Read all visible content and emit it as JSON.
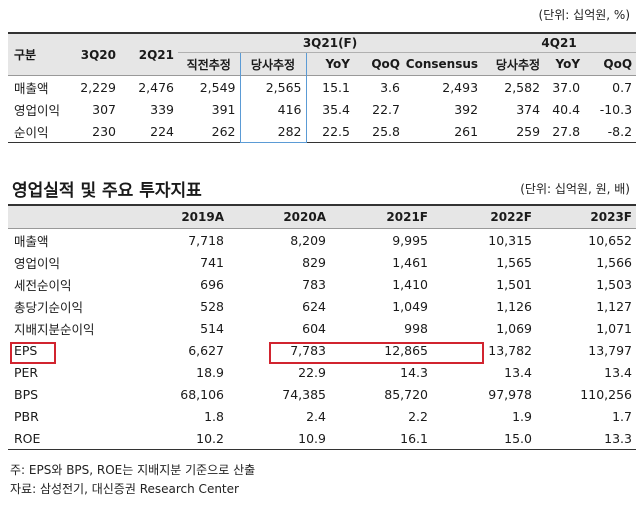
{
  "top": {
    "unit": "(단위: 십억원, %)",
    "header": {
      "gubun": "구분",
      "group_3q21": "3Q21(F)",
      "group_4q21": "4Q21",
      "cols": [
        "3Q20",
        "2Q21",
        "직전추정",
        "당사추정",
        "YoY",
        "QoQ",
        "Consensus",
        "당사추정",
        "YoY",
        "QoQ"
      ]
    },
    "rows": [
      {
        "label": "매출액",
        "values": [
          "2,229",
          "2,476",
          "2,549",
          "2,565",
          "15.1",
          "3.6",
          "2,493",
          "2,582",
          "37.0",
          "0.7"
        ]
      },
      {
        "label": "영업이익",
        "values": [
          "307",
          "339",
          "391",
          "416",
          "35.4",
          "22.7",
          "392",
          "374",
          "40.4",
          "-10.3"
        ]
      },
      {
        "label": "순이익",
        "values": [
          "230",
          "224",
          "262",
          "282",
          "22.5",
          "25.8",
          "261",
          "259",
          "27.8",
          "-8.2"
        ]
      }
    ]
  },
  "bottom": {
    "title": "영업실적 및 주요 투자지표",
    "unit": "(단위: 십억원, 원, 배)",
    "years": [
      "2019A",
      "2020A",
      "2021F",
      "2022F",
      "2023F"
    ],
    "rows": [
      {
        "label": "매출액",
        "values": [
          "7,718",
          "8,209",
          "9,995",
          "10,315",
          "10,652"
        ]
      },
      {
        "label": "영업이익",
        "values": [
          "741",
          "829",
          "1,461",
          "1,565",
          "1,566"
        ]
      },
      {
        "label": "세전순이익",
        "values": [
          "696",
          "783",
          "1,410",
          "1,501",
          "1,503"
        ]
      },
      {
        "label": "총당기순이익",
        "values": [
          "528",
          "624",
          "1,049",
          "1,126",
          "1,127"
        ]
      },
      {
        "label": "지배지분순이익",
        "values": [
          "514",
          "604",
          "998",
          "1,069",
          "1,071"
        ]
      },
      {
        "label": "EPS",
        "values": [
          "6,627",
          "7,783",
          "12,865",
          "13,782",
          "13,797"
        ]
      },
      {
        "label": "PER",
        "values": [
          "18.9",
          "22.9",
          "14.3",
          "13.4",
          "13.4"
        ]
      },
      {
        "label": "BPS",
        "values": [
          "68,106",
          "74,385",
          "85,720",
          "97,978",
          "110,256"
        ]
      },
      {
        "label": "PBR",
        "values": [
          "1.8",
          "2.4",
          "2.2",
          "1.9",
          "1.7"
        ]
      },
      {
        "label": "ROE",
        "values": [
          "10.2",
          "10.9",
          "16.1",
          "15.0",
          "13.3"
        ]
      }
    ]
  },
  "notes": {
    "note1": "주: EPS와 BPS, ROE는 지배지분 기준으로 산출",
    "note2": "자료: 삼성전기, 대신증권 Research Center"
  }
}
